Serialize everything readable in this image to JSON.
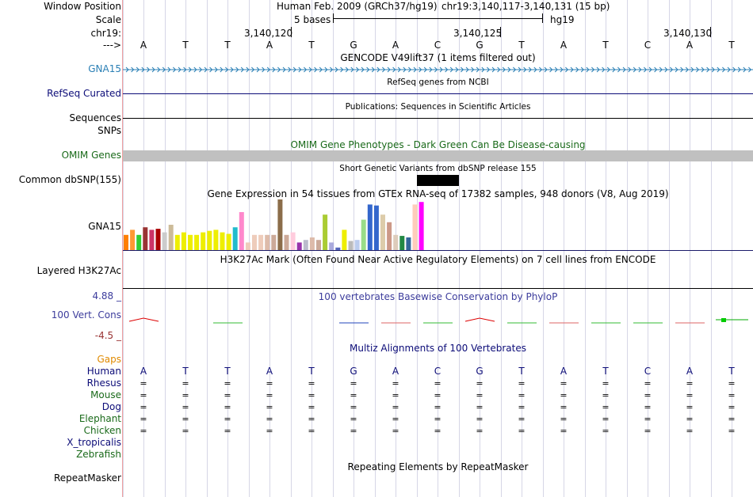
{
  "header": {
    "window_position_label": "Window Position",
    "scale_label": "Scale",
    "chrom_label": "chr19:",
    "arrow_label": "--->",
    "assembly_title": "Human Feb. 2009 (GRCh37/hg19)",
    "position": "chr19:3,140,117-3,140,131 (15 bp)",
    "scale_text": "5 bases",
    "db": "hg19",
    "ticks": [
      "3,140,120",
      "3,140,125",
      "3,140,130"
    ]
  },
  "sequence": [
    "A",
    "T",
    "T",
    "A",
    "T",
    "G",
    "A",
    "C",
    "G",
    "T",
    "A",
    "T",
    "C",
    "A",
    "T"
  ],
  "tracks": {
    "gencode": {
      "title": "GENCODE V49lift37 (1 items filtered out)",
      "label": "GNA15",
      "color": "#2a7fb5"
    },
    "refseq": {
      "title": "RefSeq genes from NCBI",
      "label": "RefSeq Curated",
      "color": "#0c0c78"
    },
    "publications": {
      "title": "Publications: Sequences in Scientific Articles",
      "label_seq": "Sequences",
      "label_snp": "SNPs"
    },
    "omim": {
      "title": "OMIM Gene Phenotypes - Dark Green Can Be Disease-causing",
      "label": "OMIM Genes",
      "color": "#1a6a1a"
    },
    "dbsnp": {
      "title": "Short Genetic Variants from dbSNP release 155",
      "label": "Common dbSNP(155)"
    },
    "gtex": {
      "title": "Gene Expression in 54 tissues from GTEx RNA-seq of 17382 samples, 948 donors (V8, Aug 2019)",
      "label": "GNA15"
    },
    "h3k27ac": {
      "title": "H3K27Ac Mark (Often Found Near Active Regulatory Elements) on 7 cell lines from ENCODE",
      "label": "Layered H3K27Ac"
    },
    "phylop": {
      "title": "100 vertebrates Basewise Conservation by PhyloP",
      "label": "100 Vert. Cons",
      "max": "4.88 _",
      "min": "-4.5 _",
      "color": "#3c3c9c"
    },
    "multiz": {
      "title": "Multiz Alignments of 100 Vertebrates",
      "gaps_label": "Gaps",
      "species": [
        {
          "name": "Human",
          "color": "#0c0c78"
        },
        {
          "name": "Rhesus",
          "color": "#0c0c78"
        },
        {
          "name": "Mouse",
          "color": "#1a6a1a"
        },
        {
          "name": "Dog",
          "color": "#0c0c78"
        },
        {
          "name": "Elephant",
          "color": "#1a6a1a"
        },
        {
          "name": "Chicken",
          "color": "#1a6a1a"
        },
        {
          "name": "X_tropicalis",
          "color": "#0c0c78"
        },
        {
          "name": "Zebrafish",
          "color": "#1a6a1a"
        }
      ],
      "eq_symbol": "="
    },
    "repeatmasker": {
      "title": "Repeating Elements by RepeatMasker",
      "label": "RepeatMasker"
    }
  },
  "gtex_bars": [
    {
      "v": 0.3,
      "c": "#ff7f00"
    },
    {
      "v": 0.4,
      "c": "#ff9933"
    },
    {
      "v": 0.3,
      "c": "#33cc33"
    },
    {
      "v": 0.45,
      "c": "#993333"
    },
    {
      "v": 0.4,
      "c": "#cc3366"
    },
    {
      "v": 0.42,
      "c": "#aa0000"
    },
    {
      "v": 0.35,
      "c": "#cccccc"
    },
    {
      "v": 0.5,
      "c": "#ccbb99"
    },
    {
      "v": 0.3,
      "c": "#eeee00"
    },
    {
      "v": 0.35,
      "c": "#eeee00"
    },
    {
      "v": 0.3,
      "c": "#eeee00"
    },
    {
      "v": 0.3,
      "c": "#eeee00"
    },
    {
      "v": 0.35,
      "c": "#eeee00"
    },
    {
      "v": 0.38,
      "c": "#eeee00"
    },
    {
      "v": 0.4,
      "c": "#eeee00"
    },
    {
      "v": 0.35,
      "c": "#eeee00"
    },
    {
      "v": 0.32,
      "c": "#eeee00"
    },
    {
      "v": 0.45,
      "c": "#22bbcc"
    },
    {
      "v": 0.75,
      "c": "#ff88cc"
    },
    {
      "v": 0.15,
      "c": "#eeccbb"
    },
    {
      "v": 0.3,
      "c": "#eeccbb"
    },
    {
      "v": 0.3,
      "c": "#eeccbb"
    },
    {
      "v": 0.3,
      "c": "#ddbbaa"
    },
    {
      "v": 0.3,
      "c": "#ccaa99"
    },
    {
      "v": 1.0,
      "c": "#8b6d4a"
    },
    {
      "v": 0.3,
      "c": "#ccaa99"
    },
    {
      "v": 0.35,
      "c": "#ffccdd"
    },
    {
      "v": 0.15,
      "c": "#9933aa"
    },
    {
      "v": 0.2,
      "c": "#bbbbcc"
    },
    {
      "v": 0.25,
      "c": "#ddbbaa"
    },
    {
      "v": 0.2,
      "c": "#ccaa99"
    },
    {
      "v": 0.7,
      "c": "#aacc33"
    },
    {
      "v": 0.15,
      "c": "#aaaadd"
    },
    {
      "v": 0.05,
      "c": "#5566bb"
    },
    {
      "v": 0.4,
      "c": "#eeee00"
    },
    {
      "v": 0.18,
      "c": "#bbbbbb"
    },
    {
      "v": 0.2,
      "c": "#bbccee"
    },
    {
      "v": 0.6,
      "c": "#99dd88"
    },
    {
      "v": 0.9,
      "c": "#3366cc"
    },
    {
      "v": 0.88,
      "c": "#3366cc"
    },
    {
      "v": 0.7,
      "c": "#ddccaa"
    },
    {
      "v": 0.55,
      "c": "#cc9988"
    },
    {
      "v": 0.3,
      "c": "#ddccbb"
    },
    {
      "v": 0.28,
      "c": "#228844"
    },
    {
      "v": 0.25,
      "c": "#336699"
    },
    {
      "v": 0.9,
      "c": "#ffccbb"
    },
    {
      "v": 0.95,
      "c": "#ff00ff"
    }
  ],
  "phylop_marks": [
    {
      "base": 0,
      "kind": "redpeak"
    },
    {
      "base": 2,
      "kind": "green"
    },
    {
      "base": 5,
      "kind": "blue"
    },
    {
      "base": 6,
      "kind": "red"
    },
    {
      "base": 7,
      "kind": "green"
    },
    {
      "base": 8,
      "kind": "redpeak"
    },
    {
      "base": 9,
      "kind": "green"
    },
    {
      "base": 10,
      "kind": "red"
    },
    {
      "base": 11,
      "kind": "green"
    },
    {
      "base": 12,
      "kind": "green"
    },
    {
      "base": 13,
      "kind": "red"
    },
    {
      "base": 14,
      "kind": "greenbox"
    }
  ]
}
